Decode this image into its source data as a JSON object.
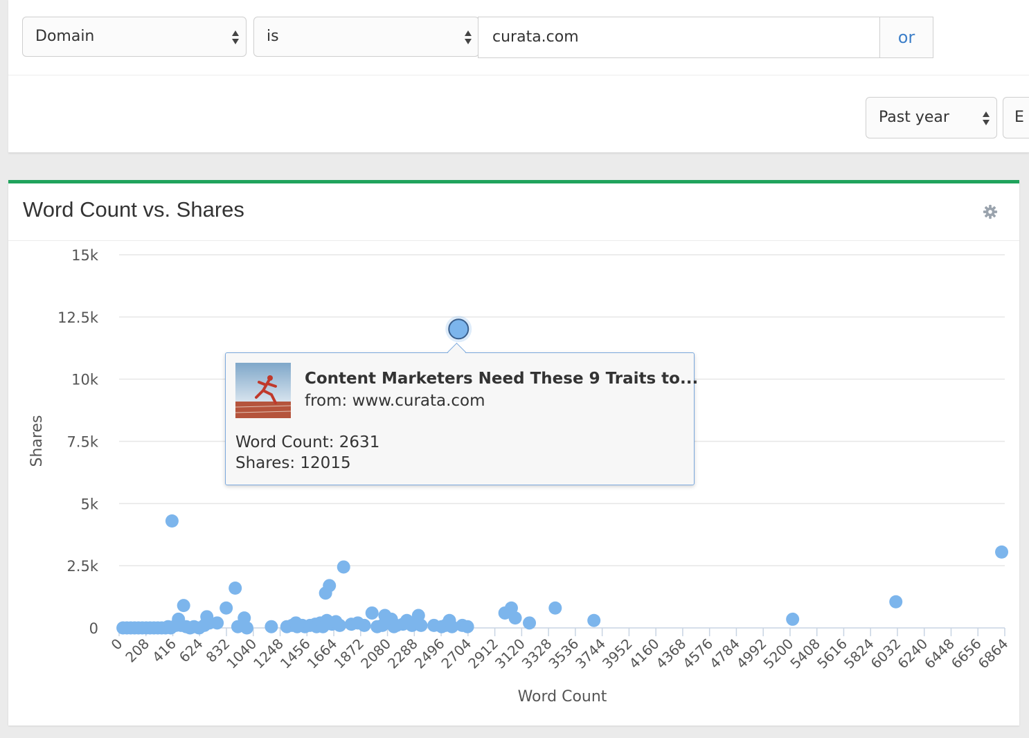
{
  "filters": {
    "field": "Domain",
    "operator": "is",
    "value": "curata.com",
    "or_label": "or",
    "time_range": "Past year",
    "cut_button_label": "E"
  },
  "panel": {
    "title": "Word Count vs. Shares",
    "settings_icon": "gear-icon"
  },
  "colors": {
    "accent": "#1fa35c",
    "point": "#7cb5ec",
    "link": "#3d7fc9"
  },
  "tooltip": {
    "title": "Content Marketers Need These 9 Traits to...",
    "from": "from: www.curata.com",
    "word_count": "Word Count: 2631",
    "shares": "Shares: 12015"
  },
  "chart_data": {
    "type": "scatter",
    "xlabel": "Word Count",
    "ylabel": "Shares",
    "xlim": [
      0,
      6864
    ],
    "ylim": [
      0,
      15000
    ],
    "x_ticks": [
      "0",
      "208",
      "416",
      "624",
      "832",
      "1040",
      "1248",
      "1456",
      "1664",
      "1872",
      "2080",
      "2288",
      "2496",
      "2704",
      "2912",
      "3120",
      "3328",
      "3536",
      "3744",
      "3952",
      "4160",
      "4368",
      "4576",
      "4784",
      "4992",
      "5200",
      "5408",
      "5616",
      "5824",
      "6032",
      "6240",
      "6448",
      "6656",
      "6864"
    ],
    "y_ticks": [
      "0",
      "2.5k",
      "5k",
      "7.5k",
      "10k",
      "12.5k",
      "15k"
    ],
    "y_tick_values": [
      0,
      2500,
      5000,
      7500,
      10000,
      12500,
      15000
    ],
    "highlighted": {
      "x": 2631,
      "y": 12015
    },
    "points": [
      [
        30,
        0
      ],
      [
        60,
        0
      ],
      [
        90,
        0
      ],
      [
        120,
        0
      ],
      [
        150,
        0
      ],
      [
        180,
        0
      ],
      [
        210,
        0
      ],
      [
        240,
        0
      ],
      [
        270,
        0
      ],
      [
        300,
        0
      ],
      [
        330,
        0
      ],
      [
        360,
        0
      ],
      [
        380,
        50
      ],
      [
        400,
        0
      ],
      [
        410,
        4300
      ],
      [
        440,
        100
      ],
      [
        460,
        350
      ],
      [
        480,
        100
      ],
      [
        500,
        900
      ],
      [
        520,
        50
      ],
      [
        550,
        0
      ],
      [
        580,
        50
      ],
      [
        620,
        0
      ],
      [
        660,
        100
      ],
      [
        680,
        450
      ],
      [
        700,
        200
      ],
      [
        760,
        200
      ],
      [
        830,
        800
      ],
      [
        900,
        1600
      ],
      [
        920,
        50
      ],
      [
        960,
        100
      ],
      [
        970,
        400
      ],
      [
        990,
        0
      ],
      [
        1180,
        50
      ],
      [
        1300,
        50
      ],
      [
        1340,
        100
      ],
      [
        1370,
        200
      ],
      [
        1380,
        50
      ],
      [
        1420,
        100
      ],
      [
        1440,
        50
      ],
      [
        1480,
        100
      ],
      [
        1520,
        150
      ],
      [
        1530,
        50
      ],
      [
        1560,
        200
      ],
      [
        1580,
        50
      ],
      [
        1600,
        1400
      ],
      [
        1610,
        300
      ],
      [
        1630,
        1700
      ],
      [
        1650,
        150
      ],
      [
        1680,
        250
      ],
      [
        1710,
        100
      ],
      [
        1740,
        2450
      ],
      [
        1800,
        150
      ],
      [
        1850,
        200
      ],
      [
        1900,
        100
      ],
      [
        1960,
        600
      ],
      [
        2000,
        50
      ],
      [
        2040,
        100
      ],
      [
        2060,
        500
      ],
      [
        2090,
        200
      ],
      [
        2110,
        350
      ],
      [
        2130,
        50
      ],
      [
        2150,
        100
      ],
      [
        2200,
        150
      ],
      [
        2230,
        300
      ],
      [
        2270,
        100
      ],
      [
        2300,
        200
      ],
      [
        2320,
        500
      ],
      [
        2340,
        100
      ],
      [
        2440,
        100
      ],
      [
        2500,
        50
      ],
      [
        2530,
        100
      ],
      [
        2560,
        300
      ],
      [
        2580,
        50
      ],
      [
        2660,
        100
      ],
      [
        2700,
        50
      ],
      [
        2990,
        600
      ],
      [
        3040,
        800
      ],
      [
        3070,
        400
      ],
      [
        3180,
        200
      ],
      [
        3380,
        800
      ],
      [
        3680,
        300
      ],
      [
        5220,
        350
      ],
      [
        6020,
        1050
      ],
      [
        6840,
        3050
      ]
    ]
  }
}
